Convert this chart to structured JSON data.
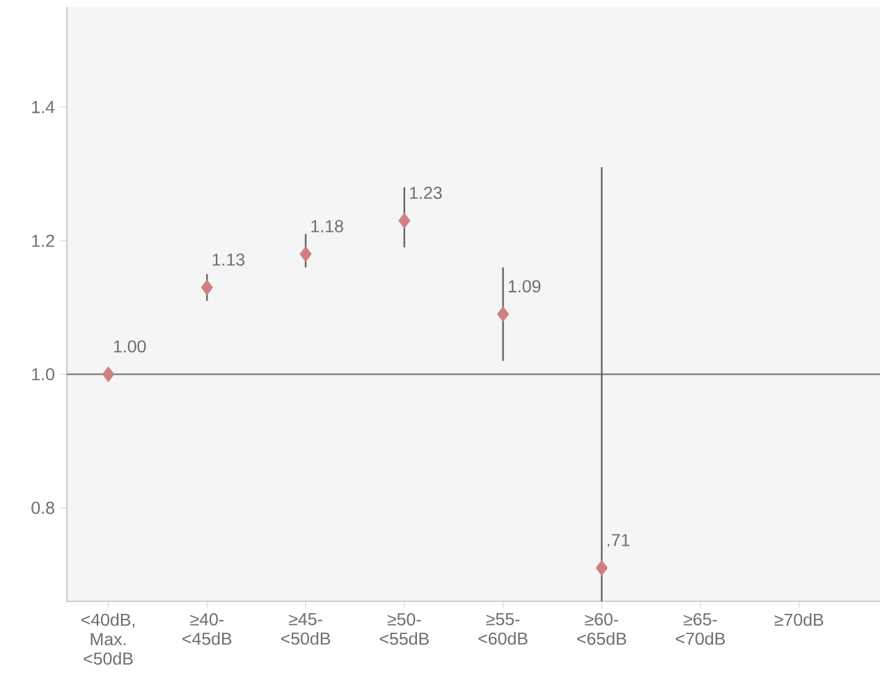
{
  "chart_data": {
    "type": "scatter",
    "categories": [
      "<40dB, Max. <50dB",
      "≥40-<45dB",
      "≥45-<50dB",
      "≥50-<55dB",
      "≥55-<60dB",
      "≥60-<65dB",
      "≥65-<70dB",
      "≥70dB"
    ],
    "values": [
      1.0,
      1.13,
      1.18,
      1.23,
      1.09,
      0.71,
      null,
      null
    ],
    "value_labels": [
      "1.00",
      "1.13",
      "1.18",
      "1.23",
      "1.09",
      ".71",
      null,
      null
    ],
    "errors": [
      null,
      [
        1.11,
        1.15
      ],
      [
        1.16,
        1.21
      ],
      [
        1.19,
        1.28
      ],
      [
        1.02,
        1.16
      ],
      [
        0.66,
        1.31
      ],
      null,
      null
    ],
    "color": "#d08080",
    "marker": "diamond",
    "ylim": [
      0.66,
      1.55
    ],
    "yticks": [
      {
        "value": 0.8,
        "label": "0.8"
      },
      {
        "value": 1.0,
        "label": "1.0"
      },
      {
        "value": 1.2,
        "label": "1.2"
      },
      {
        "value": 1.4,
        "label": "1.4"
      }
    ],
    "ref_lines": [
      {
        "axis": "y",
        "value": 1.0,
        "color": "#888888"
      }
    ],
    "grid": false
  }
}
